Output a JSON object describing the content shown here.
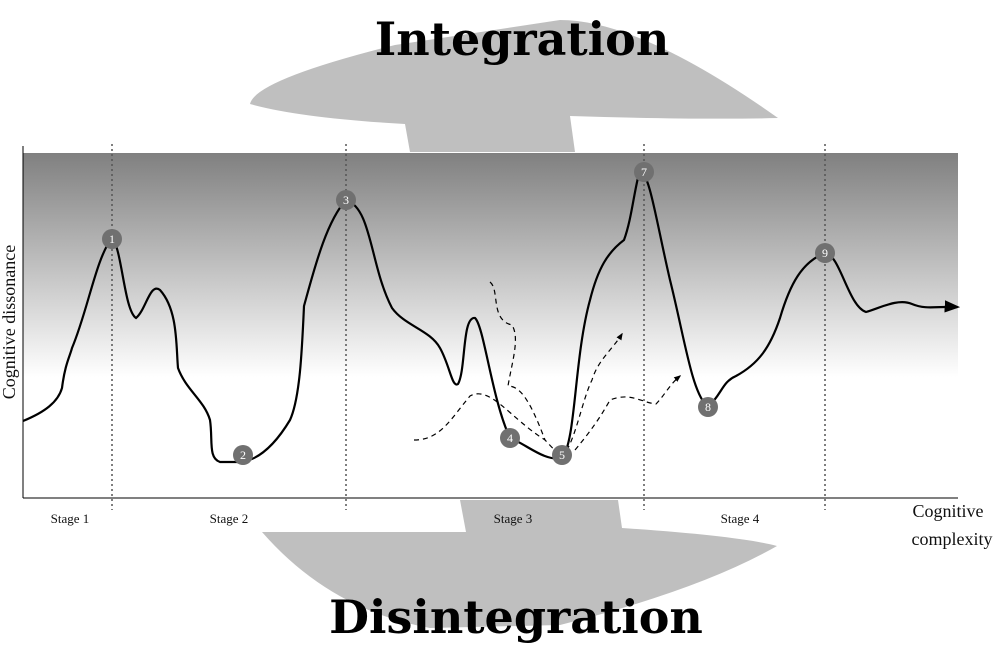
{
  "diagram": {
    "top_label": "Integration",
    "bottom_label": "Disintegration",
    "y_axis_label": "Cognitive dissonance",
    "x_axis_label_line1": "Cognitive",
    "x_axis_label_line2": "complexity",
    "stages": [
      "Stage 1",
      "Stage 2",
      "Stage 3",
      "Stage 4"
    ],
    "markers": [
      "1",
      "2",
      "3",
      "4",
      "5",
      "7",
      "8",
      "9"
    ]
  }
}
